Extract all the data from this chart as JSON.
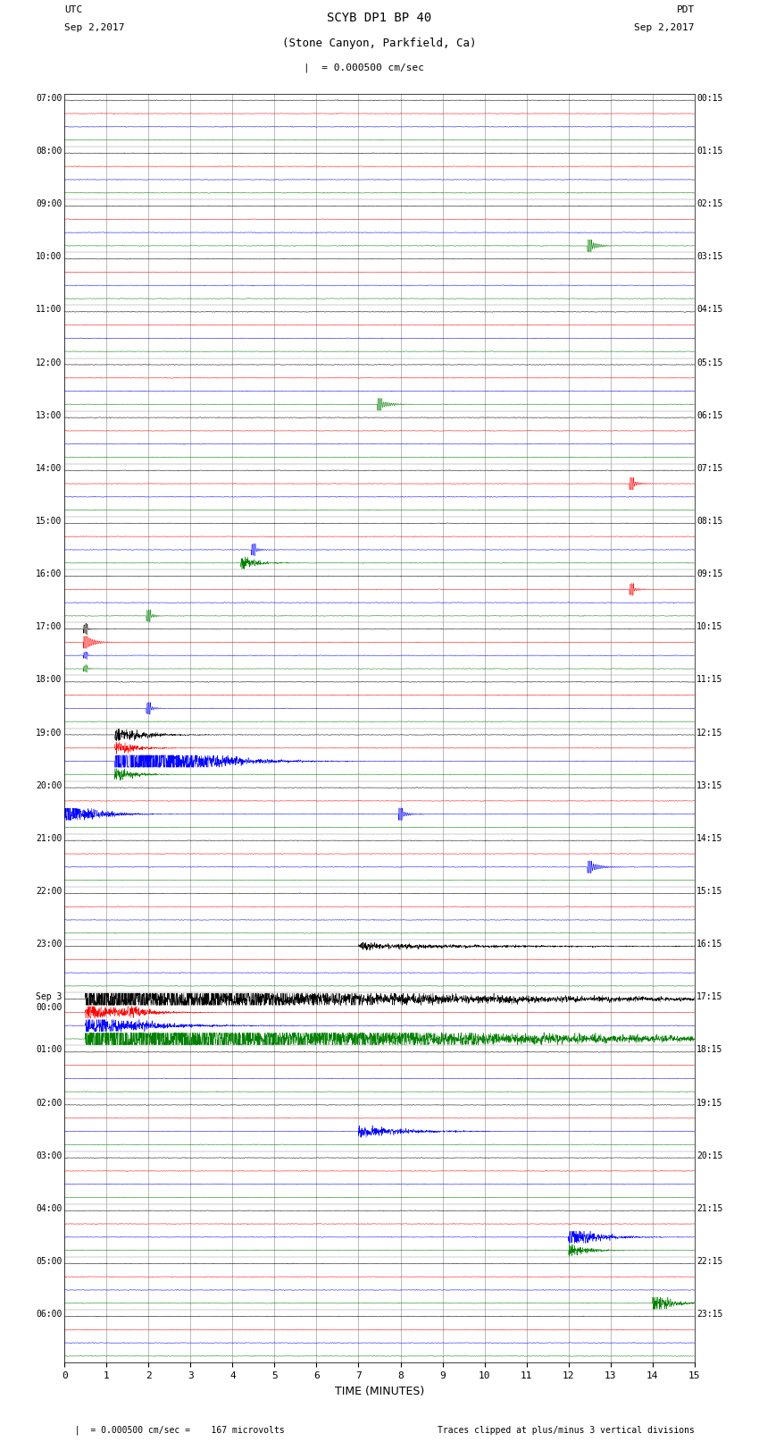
{
  "title_line1": "SCYB DP1 BP 40",
  "title_line2": "(Stone Canyon, Parkfield, Ca)",
  "scale_label": "= 0.000500 cm/sec",
  "left_date_label": "UTC\nSep 2,2017",
  "right_date_label": "PDT\nSep 2,2017",
  "bottom_note": "  = 0.000500 cm/sec =    167 microvolts",
  "bottom_note2": "Traces clipped at plus/minus 3 vertical divisions",
  "xlabel": "TIME (MINUTES)",
  "left_times": [
    "07:00",
    "08:00",
    "09:00",
    "10:00",
    "11:00",
    "12:00",
    "13:00",
    "14:00",
    "15:00",
    "16:00",
    "17:00",
    "18:00",
    "19:00",
    "20:00",
    "21:00",
    "22:00",
    "23:00",
    "Sep 3\n00:00",
    "01:00",
    "02:00",
    "03:00",
    "04:00",
    "05:00",
    "06:00"
  ],
  "right_times": [
    "00:15",
    "01:15",
    "02:15",
    "03:15",
    "04:15",
    "05:15",
    "06:15",
    "07:15",
    "08:15",
    "09:15",
    "10:15",
    "11:15",
    "12:15",
    "13:15",
    "14:15",
    "15:15",
    "16:15",
    "17:15",
    "18:15",
    "19:15",
    "20:15",
    "21:15",
    "22:15",
    "23:15"
  ],
  "n_rows": 24,
  "n_traces_per_row": 4,
  "trace_colors": [
    "black",
    "red",
    "blue",
    "green"
  ],
  "xmin": 0,
  "xmax": 15,
  "xticks": [
    0,
    1,
    2,
    3,
    4,
    5,
    6,
    7,
    8,
    9,
    10,
    11,
    12,
    13,
    14,
    15
  ],
  "bg_color": "white",
  "grid_color": "#888888",
  "fig_width": 8.5,
  "fig_height": 16.13,
  "dpi": 100,
  "noise_std": 0.018
}
